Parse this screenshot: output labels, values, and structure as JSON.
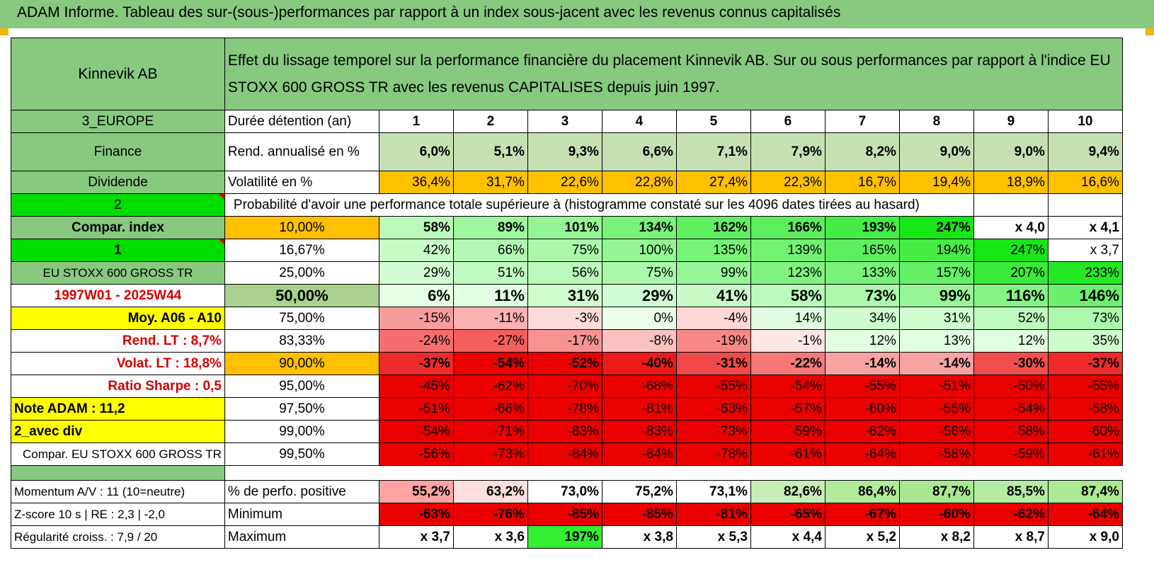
{
  "header": {
    "title": "ADAM Informe. Tableau des sur-(sous-)performances par rapport à un index sous-jacent avec les revenus connus capitalisés"
  },
  "info": {
    "name": "Kinnevik AB",
    "description": "Effet du lissage temporel sur la performance financière du placement Kinnevik AB. Sur ou sous performances par rapport à l'indice EU STOXX 600 GROSS TR avec les revenus CAPITALISES depuis juin 1997.",
    "region": "3_EUROPE",
    "sector": "Finance",
    "dividend_label": "Dividende",
    "option_2": "2",
    "compar_index_label": "Compar. index",
    "option_1": "1",
    "index_name": "EU STOXX 600 GROSS TR",
    "period": "1997W01 - 2025W44",
    "moy": "Moy. A06 - A10",
    "rend_lt": "Rend. LT :   8,7%",
    "volat_lt": "Volat. LT :   18,8%",
    "sharpe": "Ratio Sharpe :   0,5",
    "note": "Note ADAM : 11,2",
    "avec_div": "2_avec div",
    "compar": "Compar. EU STOXX 600 GROSS TR",
    "momentum": "Momentum A/V : 11 (10=neutre)",
    "zscore": "Z-score 10 s | RE : 2,3 | -2,0",
    "regularite": "Régularité croiss. : 7,9 / 20"
  },
  "labels": {
    "duree": "Durée détention (an)",
    "rend": "Rend. annualisé en %",
    "vol": "Volatilité en %",
    "prob": "Probabilité d'avoir une performance totale supérieure à (histogramme constaté sur les 4096 dates tirées au hasard)",
    "pct_pos": "% de perfo. positive",
    "min": "Minimum",
    "max": "Maximum"
  },
  "years": [
    "1",
    "2",
    "3",
    "4",
    "5",
    "6",
    "7",
    "8",
    "9",
    "10"
  ],
  "rend": [
    "6,0%",
    "5,1%",
    "9,3%",
    "6,6%",
    "7,1%",
    "7,9%",
    "8,2%",
    "9,0%",
    "9,0%",
    "9,4%"
  ],
  "vol": [
    "36,4%",
    "31,7%",
    "22,6%",
    "22,8%",
    "27,4%",
    "22,3%",
    "16,7%",
    "19,4%",
    "18,9%",
    "16,6%"
  ],
  "prob_rows": [
    {
      "p": "10,00%",
      "v": [
        "58%",
        "89%",
        "101%",
        "134%",
        "162%",
        "166%",
        "193%",
        "247%",
        "x 4,0",
        "x 4,1"
      ]
    },
    {
      "p": "16,67%",
      "v": [
        "42%",
        "66%",
        "75%",
        "100%",
        "135%",
        "139%",
        "165%",
        "194%",
        "247%",
        "x 3,7"
      ]
    },
    {
      "p": "25,00%",
      "v": [
        "29%",
        "51%",
        "56%",
        "75%",
        "99%",
        "123%",
        "133%",
        "157%",
        "207%",
        "233%"
      ]
    },
    {
      "p": "50,00%",
      "v": [
        "6%",
        "11%",
        "31%",
        "29%",
        "41%",
        "58%",
        "73%",
        "99%",
        "116%",
        "146%"
      ]
    },
    {
      "p": "75,00%",
      "v": [
        "-15%",
        "-11%",
        "-3%",
        "0%",
        "-4%",
        "14%",
        "34%",
        "31%",
        "52%",
        "73%"
      ]
    },
    {
      "p": "83,33%",
      "v": [
        "-24%",
        "-27%",
        "-17%",
        "-8%",
        "-19%",
        "-1%",
        "12%",
        "13%",
        "12%",
        "35%"
      ]
    },
    {
      "p": "90,00%",
      "v": [
        "-37%",
        "-54%",
        "-52%",
        "-40%",
        "-31%",
        "-22%",
        "-14%",
        "-14%",
        "-30%",
        "-37%"
      ]
    },
    {
      "p": "95,00%",
      "v": [
        "-45%",
        "-62%",
        "-70%",
        "-68%",
        "-55%",
        "-54%",
        "-55%",
        "-51%",
        "-50%",
        "-55%"
      ]
    },
    {
      "p": "97,50%",
      "v": [
        "-51%",
        "-66%",
        "-78%",
        "-81%",
        "-63%",
        "-57%",
        "-60%",
        "-55%",
        "-54%",
        "-58%"
      ]
    },
    {
      "p": "99,00%",
      "v": [
        "-54%",
        "-71%",
        "-83%",
        "-83%",
        "-73%",
        "-59%",
        "-62%",
        "-56%",
        "-58%",
        "-60%"
      ]
    },
    {
      "p": "99,50%",
      "v": [
        "-56%",
        "-73%",
        "-84%",
        "-84%",
        "-78%",
        "-61%",
        "-64%",
        "-58%",
        "-59%",
        "-61%"
      ]
    }
  ],
  "pct_pos": [
    "55,2%",
    "63,2%",
    "73,0%",
    "75,2%",
    "73,1%",
    "82,6%",
    "86,4%",
    "87,7%",
    "85,5%",
    "87,4%"
  ],
  "minimum": [
    "-63%",
    "-76%",
    "-85%",
    "-85%",
    "-81%",
    "-65%",
    "-67%",
    "-60%",
    "-62%",
    "-64%"
  ],
  "maximum": [
    "x 3,7",
    "x 3,6",
    "197%",
    "x 3,8",
    "x 5,3",
    "x 4,4",
    "x 5,2",
    "x 8,2",
    "x 8,7",
    "x 9,0"
  ],
  "colors": {
    "header_green": "#86c97f",
    "light_green": "#c6e0b4",
    "bright_green": "#00dd00",
    "yellow": "#ffff00",
    "orange": "#ffc000",
    "dark_red": "#e60000"
  }
}
